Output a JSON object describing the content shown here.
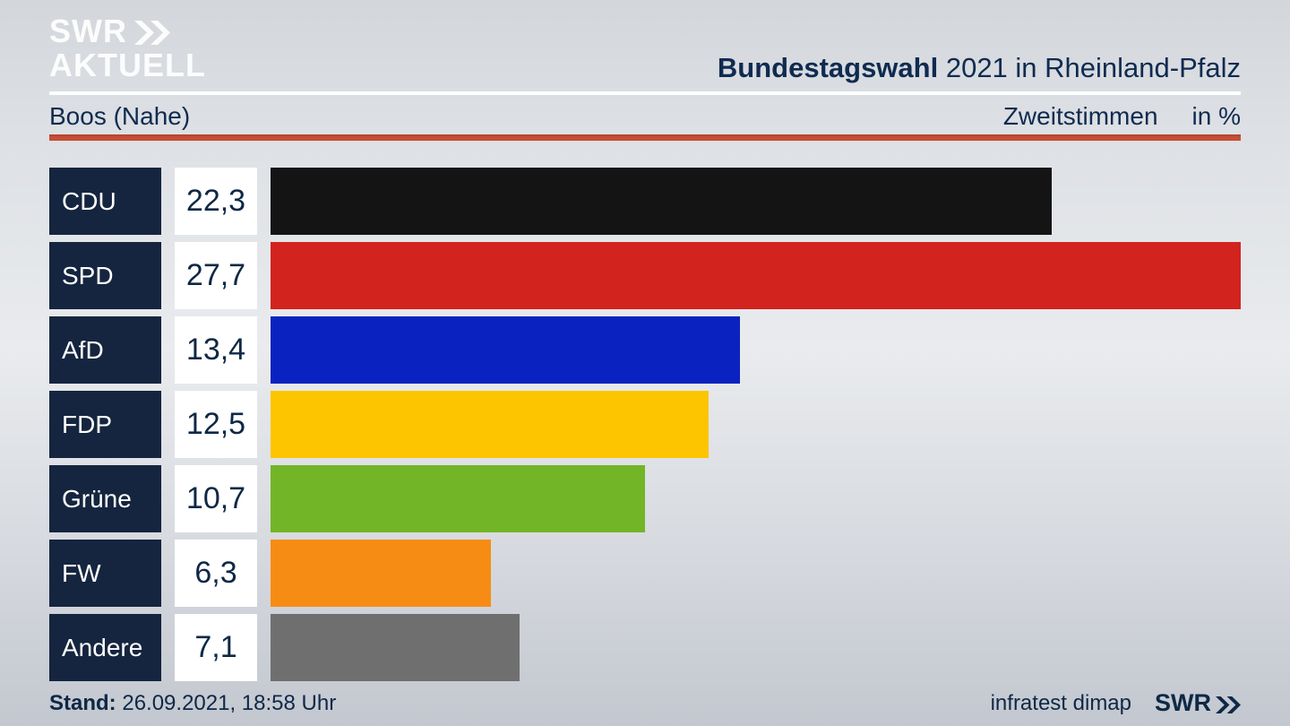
{
  "header": {
    "brand_line1": "SWR",
    "brand_line2": "AKTUELL",
    "title_bold": "Bundestagswahl",
    "title_rest": " 2021 in Rheinland-Pfalz"
  },
  "subheader": {
    "region": "Boos (Nahe)",
    "vote_type": "Zweitstimmen",
    "unit": "in %"
  },
  "chart_data": {
    "type": "bar",
    "orientation": "horizontal",
    "title": "Bundestagswahl 2021 in Rheinland-Pfalz – Boos (Nahe), Zweitstimmen in %",
    "categories": [
      "CDU",
      "SPD",
      "AfD",
      "FDP",
      "Grüne",
      "FW",
      "Andere"
    ],
    "values": [
      22.3,
      27.7,
      13.4,
      12.5,
      10.7,
      6.3,
      7.1
    ],
    "value_labels": [
      "22,3",
      "27,7",
      "13,4",
      "12,5",
      "10,7",
      "6,3",
      "7,1"
    ],
    "bar_colors": [
      "#141414",
      "#d3231f",
      "#0a23c0",
      "#fdc500",
      "#72b527",
      "#f78c15",
      "#6f6f6f"
    ],
    "xlim": [
      0,
      27.7
    ],
    "grid": false,
    "legend": false
  },
  "footer": {
    "stand_label": "Stand:",
    "stand_value": " 26.09.2021, 18:58 Uhr",
    "source": "infratest dimap",
    "brand": "SWR"
  },
  "colors": {
    "navy_text": "#0f2b50",
    "label_box": "#15253f",
    "value_box": "#ffffff",
    "accent_line_red": "#c24931",
    "separator_white": "#fafbfc",
    "background_top": "#d3d6db",
    "background_mid": "#e9ebee",
    "background_bottom": "#c3c7cf",
    "brand_watermark": "rgba(255,255,255,0.92)"
  }
}
